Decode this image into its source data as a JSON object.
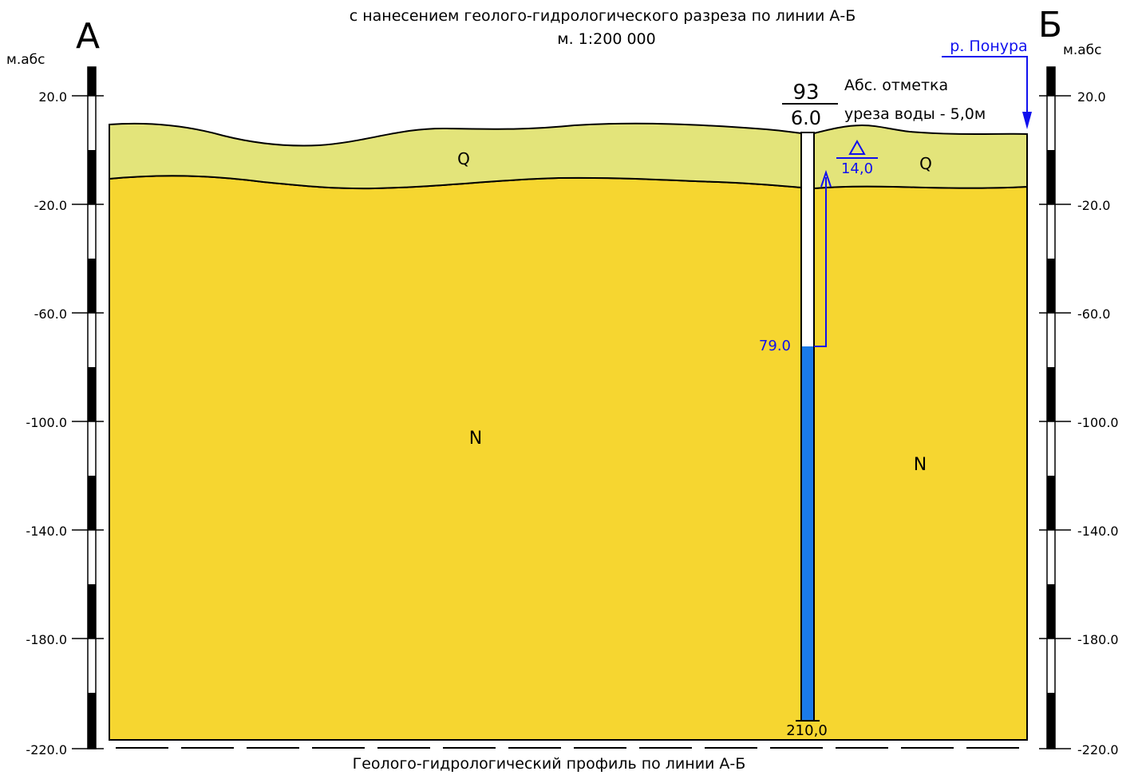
{
  "header": {
    "title_line": "с нанесением геолого-гидрологического разреза по линии А-Б",
    "scale": "м. 1:200 000"
  },
  "section_labels": {
    "left": "А",
    "right": "Б"
  },
  "axis": {
    "unit_left": "м.абс",
    "unit_right": "м.абс",
    "ticks": [
      "20.0",
      "-20.0",
      "-60.0",
      "-100.0",
      "-140.0",
      "-180.0",
      "-220.0"
    ]
  },
  "layers": {
    "quaternary_left": "Q",
    "quaternary_right": "Q",
    "neogene_left": "N",
    "neogene_right": "N",
    "colors": {
      "quaternary": "#e3e47a",
      "neogene": "#f6d630",
      "water": "#1a7ae8",
      "annotation": "#1010ee"
    }
  },
  "well": {
    "number": "93",
    "elevation": "6.0",
    "water_level_depth": "79.0",
    "static_level_mark": "14,0",
    "bottom_depth": "210,0"
  },
  "river": {
    "label": "р. Понура",
    "note_line1": "Абс. отметка",
    "note_line2": "уреза воды - 5,0м"
  },
  "footer": {
    "caption": "Геолого-гидрологический профиль по линии А-Б"
  }
}
